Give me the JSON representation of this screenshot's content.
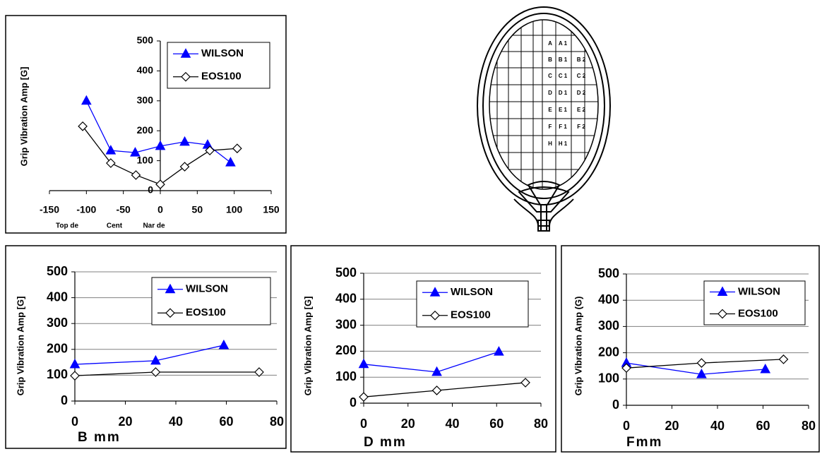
{
  "chart_data": [
    {
      "type": "line",
      "y_label": "Grip Vibration Amp [G]",
      "annotations": [
        "Top de",
        "Cent",
        "Nar de"
      ],
      "xlim": [
        -150,
        150
      ],
      "xticks": [
        -150,
        -100,
        -50,
        0,
        50,
        100,
        150
      ],
      "ylim": [
        0,
        500
      ],
      "yticks": [
        0,
        100,
        200,
        300,
        400,
        500
      ],
      "grid": false,
      "series": [
        {
          "name": "WILSON",
          "color": "#0000ff",
          "marker": "triangle",
          "x": [
            -100,
            -67,
            -34,
            0,
            33,
            64,
            95
          ],
          "values": [
            300,
            134,
            127,
            149,
            163,
            153,
            94
          ]
        },
        {
          "name": "EOS100",
          "color": "#000000",
          "marker": "diamond",
          "x": [
            -105,
            -67,
            -33,
            0,
            33,
            67,
            104
          ],
          "values": [
            215,
            92,
            52,
            21,
            80,
            134,
            141
          ]
        }
      ]
    },
    {
      "type": "line",
      "y_label": "Grip Vibration Amp [G]",
      "x_label": "B mm",
      "xlim": [
        0,
        80
      ],
      "xticks": [
        0,
        20,
        40,
        60,
        80
      ],
      "ylim": [
        0,
        500
      ],
      "yticks": [
        0,
        100,
        200,
        300,
        400,
        500
      ],
      "grid": true,
      "series": [
        {
          "name": "WILSON",
          "color": "#0000ff",
          "marker": "triangle",
          "x": [
            0,
            32,
            59
          ],
          "values": [
            142,
            156,
            216
          ]
        },
        {
          "name": "EOS100",
          "color": "#000000",
          "marker": "diamond",
          "x": [
            0,
            32,
            73
          ],
          "values": [
            98,
            112,
            112
          ]
        }
      ]
    },
    {
      "type": "line",
      "y_label": "Grip Vibration Amp [G]",
      "x_label": "D mm",
      "xlim": [
        0,
        80
      ],
      "xticks": [
        0,
        20,
        40,
        60,
        80
      ],
      "ylim": [
        0,
        500
      ],
      "yticks": [
        0,
        100,
        200,
        300,
        400,
        500
      ],
      "grid": true,
      "series": [
        {
          "name": "WILSON",
          "color": "#0000ff",
          "marker": "triangle",
          "x": [
            0,
            33,
            61
          ],
          "values": [
            150,
            120,
            198
          ]
        },
        {
          "name": "EOS100",
          "color": "#000000",
          "marker": "diamond",
          "x": [
            0,
            33,
            73
          ],
          "values": [
            24,
            49,
            79
          ]
        }
      ]
    },
    {
      "type": "line",
      "y_label": "Grip Vibration Amp (G)",
      "x_label": "Fmm",
      "xlim": [
        0,
        80
      ],
      "xticks": [
        0,
        20,
        40,
        60,
        80
      ],
      "ylim": [
        0,
        500
      ],
      "yticks": [
        0,
        100,
        200,
        300,
        400,
        500
      ],
      "grid": true,
      "series": [
        {
          "name": "WILSON",
          "color": "#0000ff",
          "marker": "triangle",
          "x": [
            0,
            33,
            61
          ],
          "values": [
            161,
            118,
            137
          ]
        },
        {
          "name": "EOS100",
          "color": "#000000",
          "marker": "diamond",
          "x": [
            0,
            33,
            69
          ],
          "values": [
            142,
            161,
            175
          ]
        }
      ]
    }
  ],
  "diagram": {
    "rows": [
      [
        "A",
        "A 1"
      ],
      [
        "B",
        "B 1",
        "B 2"
      ],
      [
        "C",
        "C 1",
        "C 2"
      ],
      [
        "D",
        "D 1",
        "D 2"
      ],
      [
        "E",
        "E 1",
        "E 2"
      ],
      [
        "F",
        "F 1",
        "F 2"
      ],
      [
        "H",
        "H 1"
      ]
    ]
  }
}
